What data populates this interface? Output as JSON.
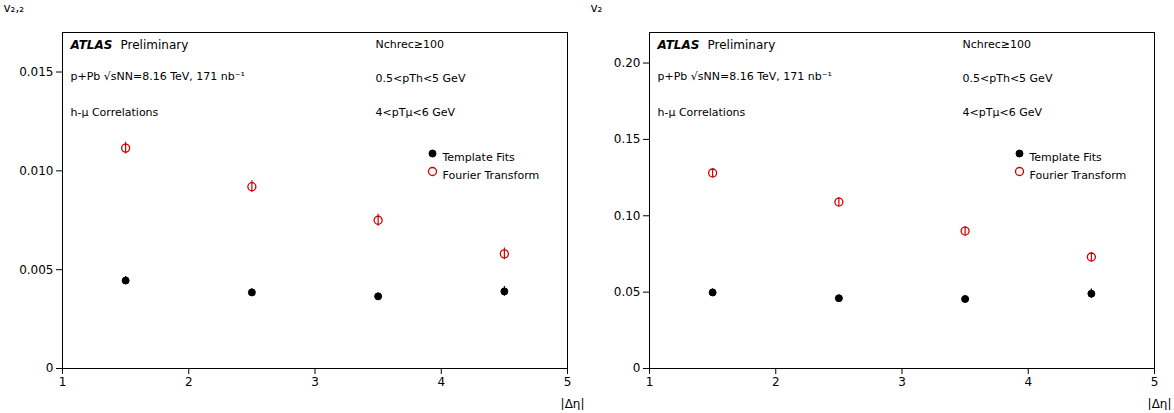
{
  "chart_data": [
    {
      "type": "scatter",
      "x": [
        1.5,
        2.5,
        3.5,
        4.5
      ],
      "xlim": [
        1.0,
        5.0
      ],
      "xticks": [
        1,
        2,
        3,
        4,
        5
      ],
      "xlabel": "|Δη|",
      "ylabel": "v₂,₂",
      "ylim": [
        0.0,
        0.017
      ],
      "yticks": [
        0,
        0.005,
        {
          "value": 0.01,
          "label": "0.010"
        },
        0.015
      ],
      "grid": false,
      "legend": "upper right",
      "annotations": [
        "ATLAS",
        "Preliminary",
        "p+Pb √sNN=8.16 TeV, 171 nb⁻¹",
        "h-μ Correlations",
        "Nchrec≥100",
        "0.5<pTh<5 GeV",
        "4<pTμ<6 GeV"
      ],
      "series": [
        {
          "name": "Template Fits",
          "color": "#000000",
          "marker": "circle",
          "values": [
            0.00445,
            0.00385,
            0.00365,
            0.0039
          ],
          "errors": [
            0.0002,
            0.00018,
            0.00015,
            0.00025
          ]
        },
        {
          "name": "Fourier Transform",
          "color": "#cc0000",
          "marker": "open circle",
          "values": [
            0.01115,
            0.0092,
            0.0075,
            0.0058
          ],
          "errors": [
            0.0003,
            0.0003,
            0.0003,
            0.0003
          ]
        }
      ]
    },
    {
      "type": "scatter",
      "x": [
        1.5,
        2.5,
        3.5,
        4.5
      ],
      "xlim": [
        1.0,
        5.0
      ],
      "xticks": [
        1,
        2,
        3,
        4,
        5
      ],
      "xlabel": "|Δη|",
      "ylabel": "v₂",
      "ylim": [
        0.0,
        0.22
      ],
      "yticks": [
        0,
        0.05,
        {
          "value": 0.1,
          "label": "0.10"
        },
        0.15,
        {
          "value": 0.2,
          "label": "0.20"
        }
      ],
      "grid": false,
      "legend": "upper right",
      "annotations": [
        "ATLAS",
        "Preliminary",
        "p+Pb √sNN=8.16 TeV, 171 nb⁻¹",
        "h-μ Correlations",
        "Nchrec≥100",
        "0.5<pTh<5 GeV",
        "4<pTμ<6 GeV"
      ],
      "series": [
        {
          "name": "Template Fits",
          "color": "#000000",
          "marker": "circle",
          "values": [
            0.0498,
            0.046,
            0.0455,
            0.049
          ],
          "errors": [
            0.0022,
            0.002,
            0.0015,
            0.003
          ]
        },
        {
          "name": "Fourier Transform",
          "color": "#cc0000",
          "marker": "open circle",
          "values": [
            0.128,
            0.109,
            0.09,
            0.073
          ],
          "errors": [
            0.003,
            0.003,
            0.003,
            0.003
          ]
        }
      ]
    }
  ]
}
